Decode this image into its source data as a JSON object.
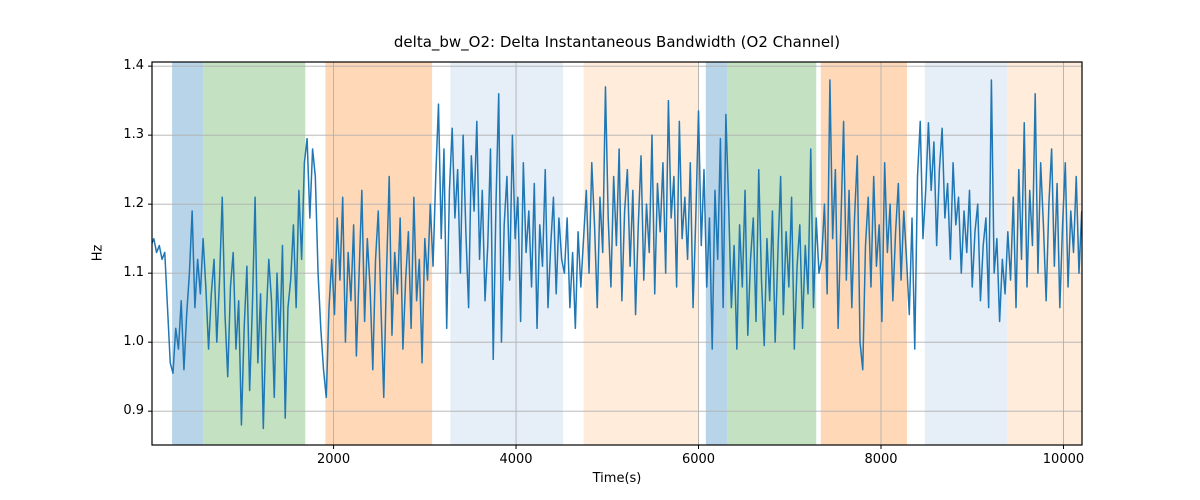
{
  "figure": {
    "background": "#ffffff"
  },
  "chart_data": {
    "type": "line",
    "title": "delta_bw_O2: Delta Instantaneous Bandwidth (O2 Channel)",
    "xlabel": "Time(s)",
    "ylabel": "Hz",
    "xlim": [
      10,
      10203
    ],
    "ylim": [
      0.851,
      1.406
    ],
    "xticks": [
      2000,
      4000,
      6000,
      8000,
      10000
    ],
    "xtick_labels": [
      "2000",
      "4000",
      "6000",
      "8000",
      "10000"
    ],
    "yticks": [
      0.9,
      1.0,
      1.1,
      1.2,
      1.3,
      1.4
    ],
    "ytick_labels": [
      "0.9",
      "1.0",
      "1.1",
      "1.2",
      "1.3",
      "1.4"
    ],
    "grid": true,
    "grid_color": "#b0b0b0",
    "spine_color": "#000000",
    "line_color": "#1f77b4",
    "line_width": 1.5,
    "legend": null,
    "bands": [
      {
        "xmin": 230,
        "xmax": 570,
        "color": "#b8d4e9",
        "name": "blue-band"
      },
      {
        "xmin": 570,
        "xmax": 1690,
        "color": "#c4e2c2",
        "name": "green-band"
      },
      {
        "xmin": 1910,
        "xmax": 3080,
        "color": "#ffd9b7",
        "name": "orange-band"
      },
      {
        "xmin": 3280,
        "xmax": 4515,
        "color": "#e6eef7",
        "name": "light-blue-band"
      },
      {
        "xmin": 4740,
        "xmax": 6000,
        "color": "#ffecdb",
        "name": "light-orange-band"
      },
      {
        "xmin": 6080,
        "xmax": 6320,
        "color": "#b8d4e9",
        "name": "blue-band"
      },
      {
        "xmin": 6320,
        "xmax": 7290,
        "color": "#c4e2c2",
        "name": "green-band"
      },
      {
        "xmin": 7340,
        "xmax": 8285,
        "color": "#ffd9b7",
        "name": "orange-band"
      },
      {
        "xmin": 8480,
        "xmax": 9380,
        "color": "#e6eef7",
        "name": "light-blue-band"
      },
      {
        "xmin": 9380,
        "xmax": 10203,
        "color": "#ffecdb",
        "name": "light-orange-band"
      }
    ],
    "series": [
      {
        "name": "delta_bw_O2",
        "x_start": 0,
        "x_step": 30,
        "values": [
          1.14,
          1.15,
          1.13,
          1.14,
          1.12,
          1.13,
          1.05,
          0.97,
          0.955,
          1.02,
          0.99,
          1.06,
          0.96,
          1.04,
          1.1,
          1.19,
          1.05,
          1.12,
          1.07,
          1.15,
          1.08,
          0.99,
          1.07,
          1.12,
          1.0,
          1.09,
          1.21,
          1.04,
          0.95,
          1.08,
          1.13,
          0.99,
          1.06,
          0.88,
          1.02,
          1.11,
          0.93,
          1.05,
          1.21,
          0.97,
          1.07,
          0.875,
          1.03,
          1.12,
          1.06,
          0.92,
          1.1,
          1.0,
          1.14,
          0.89,
          1.05,
          1.09,
          1.17,
          1.05,
          1.22,
          1.12,
          1.26,
          1.295,
          1.18,
          1.28,
          1.24,
          1.1,
          1.02,
          0.96,
          0.92,
          1.05,
          1.12,
          1.04,
          1.18,
          1.09,
          1.21,
          1.0,
          1.13,
          1.06,
          1.17,
          0.98,
          1.1,
          1.22,
          1.03,
          1.15,
          1.08,
          0.96,
          1.12,
          1.19,
          1.05,
          0.92,
          1.1,
          1.24,
          1.01,
          1.13,
          1.07,
          1.18,
          0.99,
          1.09,
          1.16,
          1.02,
          1.21,
          1.06,
          1.12,
          0.97,
          1.15,
          1.09,
          1.2,
          1.11,
          1.24,
          1.345,
          1.15,
          1.28,
          1.02,
          1.22,
          1.31,
          1.18,
          1.25,
          1.1,
          1.3,
          1.16,
          1.05,
          1.27,
          1.19,
          1.32,
          1.12,
          1.22,
          1.06,
          1.14,
          1.28,
          0.975,
          1.2,
          1.36,
          1.0,
          1.17,
          1.24,
          1.09,
          1.3,
          1.15,
          1.21,
          1.03,
          1.26,
          1.13,
          1.19,
          1.08,
          1.23,
          1.02,
          1.17,
          1.11,
          1.25,
          1.05,
          1.14,
          1.21,
          1.07,
          1.18,
          1.12,
          1.1,
          1.18,
          1.05,
          1.13,
          1.02,
          1.16,
          1.08,
          1.15,
          1.22,
          1.1,
          1.26,
          1.17,
          1.05,
          1.21,
          1.13,
          1.37,
          1.18,
          1.08,
          1.24,
          1.14,
          1.28,
          1.06,
          1.19,
          1.25,
          1.11,
          1.22,
          1.04,
          1.17,
          1.27,
          1.09,
          1.2,
          1.13,
          1.3,
          1.07,
          1.23,
          1.16,
          1.26,
          1.1,
          1.35,
          1.18,
          1.24,
          1.08,
          1.32,
          1.15,
          1.21,
          1.12,
          1.26,
          1.05,
          1.18,
          1.335,
          1.14,
          1.25,
          1.08,
          1.18,
          0.99,
          1.22,
          1.12,
          1.295,
          1.05,
          1.33,
          1.2,
          1.05,
          1.14,
          0.99,
          1.17,
          1.08,
          1.22,
          1.01,
          1.12,
          1.18,
          1.03,
          1.25,
          1.09,
          0.995,
          1.15,
          1.06,
          1.19,
          1.0,
          1.13,
          1.24,
          1.04,
          1.16,
          1.08,
          1.21,
          0.99,
          1.11,
          1.17,
          1.02,
          1.14,
          1.07,
          1.28,
          1.05,
          1.18,
          1.1,
          1.12,
          1.2,
          1.07,
          1.38,
          1.15,
          1.25,
          1.02,
          1.17,
          1.32,
          1.09,
          1.22,
          1.05,
          1.18,
          1.27,
          1.0,
          0.96,
          1.14,
          1.21,
          1.08,
          1.24,
          1.11,
          1.17,
          1.03,
          1.26,
          1.13,
          1.2,
          1.06,
          1.16,
          1.23,
          1.09,
          1.19,
          1.12,
          1.04,
          1.18,
          0.99,
          1.24,
          1.32,
          1.15,
          1.22,
          1.318,
          1.22,
          1.29,
          1.14,
          1.25,
          1.31,
          1.18,
          1.23,
          1.12,
          1.26,
          1.17,
          1.21,
          1.1,
          1.19,
          1.13,
          1.22,
          1.08,
          1.16,
          1.2,
          1.06,
          1.14,
          1.18,
          1.05,
          1.38,
          1.1,
          1.15,
          1.03,
          1.12,
          1.07,
          1.16,
          1.09,
          1.21,
          1.05,
          1.25,
          1.12,
          1.318,
          1.08,
          1.22,
          1.14,
          1.36,
          1.1,
          1.26,
          1.17,
          1.06,
          1.2,
          1.28,
          1.11,
          1.23,
          1.05,
          1.17,
          1.26,
          1.08,
          1.19,
          1.13,
          1.24,
          1.1,
          1.19
        ]
      }
    ]
  }
}
